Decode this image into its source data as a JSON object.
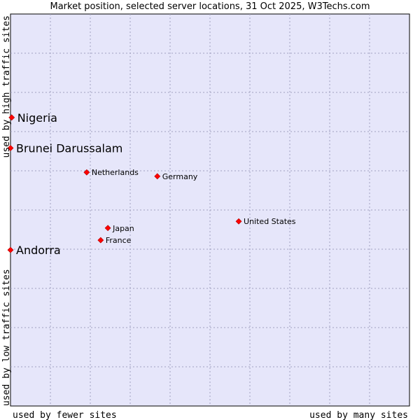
{
  "chart_data": {
    "type": "scatter",
    "title": "Market position, selected server locations, 31 Oct 2025, W3Techs.com",
    "xlabel_left": "used by fewer sites",
    "xlabel_right": "used by many sites",
    "ylabel_bottom": "used by low traffic sites",
    "ylabel_top": "used by high traffic sites",
    "xlim": [
      0,
      100
    ],
    "ylim": [
      0,
      100
    ],
    "grid": true,
    "background_color": "#e6e6fa",
    "marker_color": "#ff0000",
    "points": [
      {
        "name": "Nigeria",
        "x": 0.3,
        "y": 73.6,
        "emphasis": true
      },
      {
        "name": "Brunei Darussalam",
        "x": 0.0,
        "y": 65.8,
        "emphasis": true
      },
      {
        "name": "Netherlands",
        "x": 19.1,
        "y": 59.6,
        "emphasis": false
      },
      {
        "name": "Germany",
        "x": 36.8,
        "y": 58.6,
        "emphasis": false
      },
      {
        "name": "United States",
        "x": 57.2,
        "y": 47.1,
        "emphasis": false
      },
      {
        "name": "Japan",
        "x": 24.4,
        "y": 45.4,
        "emphasis": false
      },
      {
        "name": "France",
        "x": 22.6,
        "y": 42.3,
        "emphasis": false
      },
      {
        "name": "Andorra",
        "x": 0.0,
        "y": 39.8,
        "emphasis": true
      }
    ]
  }
}
